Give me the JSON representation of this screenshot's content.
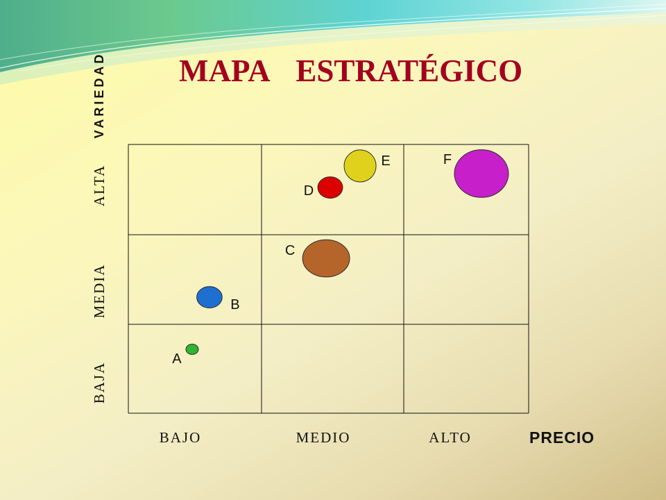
{
  "chart_data": {
    "type": "scatter",
    "title": "MAPA ESTRATÉGICO",
    "xlabel": "PRECIO",
    "ylabel": "VARIEDAD",
    "x_categories": [
      "BAJO",
      "MEDIO",
      "ALTO"
    ],
    "y_categories": [
      "BAJA",
      "MEDIA",
      "ALTA"
    ],
    "grid": true,
    "points": [
      {
        "label": "A",
        "x": "BAJO",
        "y": "BAJA",
        "size": 0.23,
        "color": "#2fb52f"
      },
      {
        "label": "B",
        "x": "BAJO",
        "y": "MEDIA",
        "size": 0.47,
        "color": "#1f6fd1"
      },
      {
        "label": "C",
        "x": "MEDIO",
        "y": "MEDIA",
        "size": 0.87,
        "color": "#b5652a"
      },
      {
        "label": "D",
        "x": "MEDIO",
        "y": "ALTA",
        "size": 0.46,
        "color": "#dc0000"
      },
      {
        "label": "E",
        "x": "MEDIO",
        "y": "ALTA",
        "size": 0.59,
        "color": "#e0d21c"
      },
      {
        "label": "F",
        "x": "ALTO",
        "y": "ALTA",
        "size": 1.0,
        "color": "#c71fc9"
      }
    ]
  },
  "colors": {
    "title": "#a3001f",
    "background": "#fbf8b8",
    "wave": "#5ed3d3"
  }
}
